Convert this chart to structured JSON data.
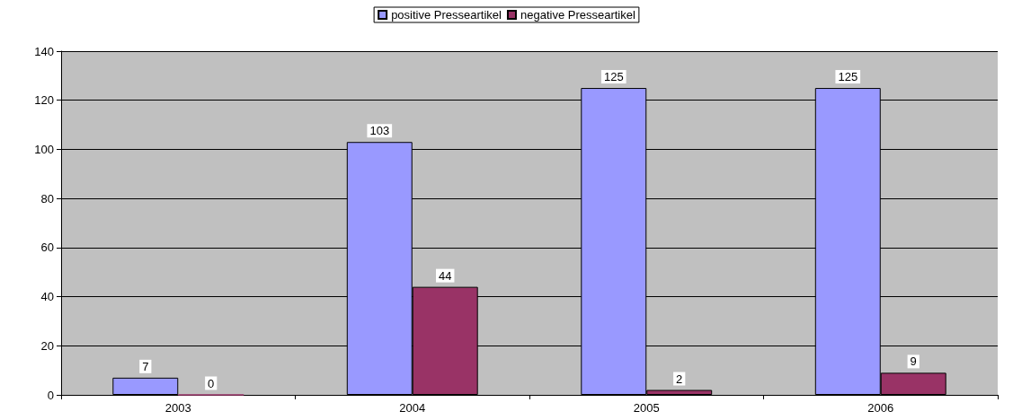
{
  "chart_data": {
    "type": "bar",
    "categories": [
      "2003",
      "2004",
      "2005",
      "2006"
    ],
    "series": [
      {
        "name": "positive Presseartikel",
        "color": "#9999ff",
        "values": [
          7,
          103,
          125,
          125
        ]
      },
      {
        "name": "negative Presseartikel",
        "color": "#993366",
        "values": [
          0,
          44,
          2,
          9
        ]
      }
    ],
    "ylim": [
      0,
      140
    ],
    "yticks": [
      0,
      20,
      40,
      60,
      80,
      100,
      120,
      140
    ],
    "grid": "y",
    "legend": "top",
    "data_labels": true
  }
}
